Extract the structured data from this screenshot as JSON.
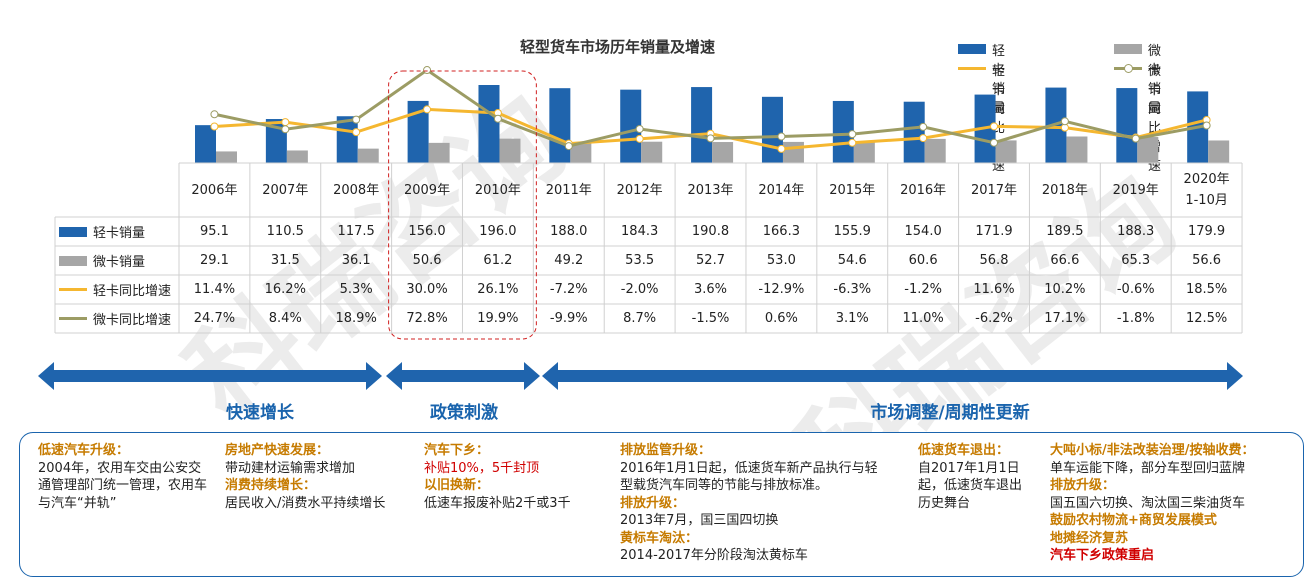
{
  "watermark": "科瑞咨询",
  "chart_data": {
    "type": "bar",
    "title": "轻型货车市场历年销量及增速",
    "categories": [
      "2006年",
      "2007年",
      "2008年",
      "2009年",
      "2010年",
      "2011年",
      "2012年",
      "2013年",
      "2014年",
      "2015年",
      "2016年",
      "2017年",
      "2018年",
      "2019年",
      "2020年 1-10月"
    ],
    "category_lines": [
      [
        "2006年"
      ],
      [
        "2007年"
      ],
      [
        "2008年"
      ],
      [
        "2009年"
      ],
      [
        "2010年"
      ],
      [
        "2011年"
      ],
      [
        "2012年"
      ],
      [
        "2013年"
      ],
      [
        "2014年"
      ],
      [
        "2015年"
      ],
      [
        "2016年"
      ],
      [
        "2017年"
      ],
      [
        "2018年"
      ],
      [
        "2019年"
      ],
      [
        "2020年",
        "1-10月"
      ]
    ],
    "series": [
      {
        "name": "轻卡销量",
        "type": "bar",
        "color": "#1f64ad",
        "values": [
          95.1,
          110.5,
          117.5,
          156.0,
          196.0,
          188.0,
          184.3,
          190.8,
          166.3,
          155.9,
          154.0,
          171.9,
          189.5,
          188.3,
          179.9
        ],
        "labels": [
          "95.1",
          "110.5",
          "117.5",
          "156.0",
          "196.0",
          "188.0",
          "184.3",
          "190.8",
          "166.3",
          "155.9",
          "154.0",
          "171.9",
          "189.5",
          "188.3",
          "179.9"
        ]
      },
      {
        "name": "微卡销量",
        "type": "bar",
        "color": "#a6a6a6",
        "values": [
          29.1,
          31.5,
          36.1,
          50.6,
          61.2,
          49.2,
          53.5,
          52.7,
          53.0,
          54.6,
          60.6,
          56.8,
          66.6,
          65.3,
          56.6
        ],
        "labels": [
          "29.1",
          "31.5",
          "36.1",
          "50.6",
          "61.2",
          "49.2",
          "53.5",
          "52.7",
          "53.0",
          "54.6",
          "60.6",
          "56.8",
          "66.6",
          "65.3",
          "56.6"
        ]
      },
      {
        "name": "轻卡同比增速",
        "type": "line",
        "color": "#f5b730",
        "values": [
          11.4,
          16.2,
          5.3,
          30.0,
          26.1,
          -7.2,
          -2.0,
          3.6,
          -12.9,
          -6.3,
          -1.2,
          11.6,
          10.2,
          -0.6,
          18.5
        ],
        "labels": [
          "11.4%",
          "16.2%",
          "5.3%",
          "30.0%",
          "26.1%",
          "-7.2%",
          "-2.0%",
          "3.6%",
          "-12.9%",
          "-6.3%",
          "-1.2%",
          "11.6%",
          "10.2%",
          "-0.6%",
          "18.5%"
        ]
      },
      {
        "name": "微卡同比增速",
        "type": "line",
        "color": "#9c9c64",
        "values": [
          24.7,
          8.4,
          18.9,
          72.8,
          19.9,
          -9.9,
          8.7,
          -1.5,
          0.6,
          3.1,
          11.0,
          -6.2,
          17.1,
          -1.8,
          12.5
        ],
        "labels": [
          "24.7%",
          "8.4%",
          "18.9%",
          "72.8%",
          "19.9%",
          "-9.9%",
          "8.7%",
          "-1.5%",
          "0.6%",
          "3.1%",
          "11.0%",
          "-6.2%",
          "17.1%",
          "-1.8%",
          "12.5%"
        ]
      }
    ],
    "legend_position": "top-right",
    "grid": false
  },
  "phases": [
    {
      "label": "快速增长"
    },
    {
      "label": "政策刺激"
    },
    {
      "label": "市场调整/周期性更新"
    }
  ],
  "notes": {
    "col1": {
      "h1": "低速汽车升级：",
      "t1": "2004年，农用车交由公安交通管理部门统一管理，农用车与汽车“并轨”"
    },
    "col2": {
      "h1": "房地产快速发展：",
      "t1": "带动建材运输需求增加",
      "h2": "消费持续增长：",
      "t2": "居民收入/消费水平持续增长"
    },
    "col3": {
      "h1": "汽车下乡：",
      "t1": "补贴10%，5千封顶",
      "h2": "以旧换新：",
      "t2": "低速车报废补贴2千或3千"
    },
    "col4": {
      "h1": "排放监管升级：",
      "t1": "2016年1月1日起，低速货车新产品执行与轻型载货汽车同等的节能与排放标准。",
      "h2": "排放升级：",
      "t2": "2013年7月，国三国四切换",
      "h3": "黄标车淘汰：",
      "t3": "2014-2017年分阶段淘汰黄标车"
    },
    "col5": {
      "h1": "低速货车退出：",
      "t1": "自2017年1月1日起，低速货车退出历史舞台"
    },
    "col6": {
      "h1": "大吨小标/非法改装治理/按轴收费：",
      "t1": "单车运能下降，部分车型回归蓝牌",
      "h2": "排放升级：",
      "t2": "国五国六切换、淘汰国三柴油货车",
      "h3": "鼓励农村物流+商贸发展模式",
      "h4": "地摊经济复苏",
      "h5": "汽车下乡政策重启"
    }
  }
}
